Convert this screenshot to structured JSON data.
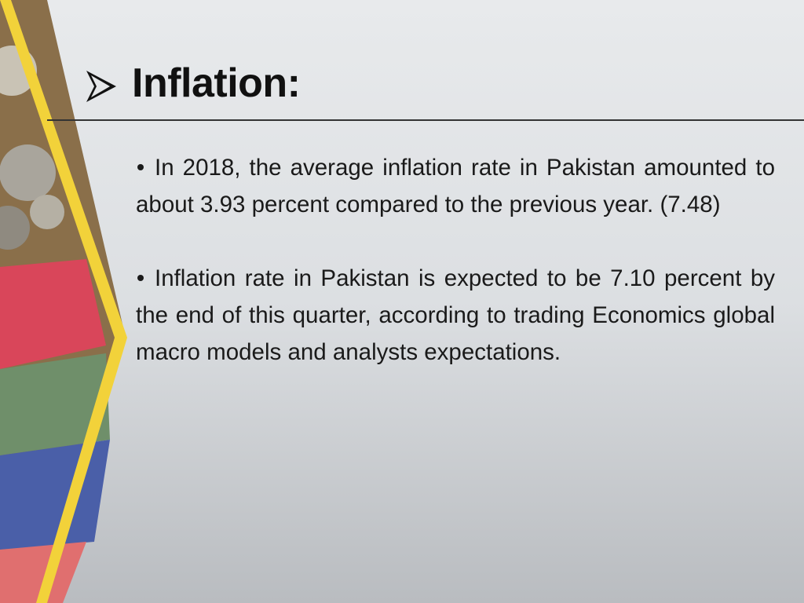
{
  "slide": {
    "title": "Inflation:",
    "bullets": [
      "In 2018, the average inflation rate in Pakistan amounted to about 3.93 percent compared to the previous year. (7.48)",
      "Inflation rate in Pakistan is expected to be 7.10 percent by the end of this quarter, according to trading Economics global macro models and analysts expectations."
    ]
  }
}
